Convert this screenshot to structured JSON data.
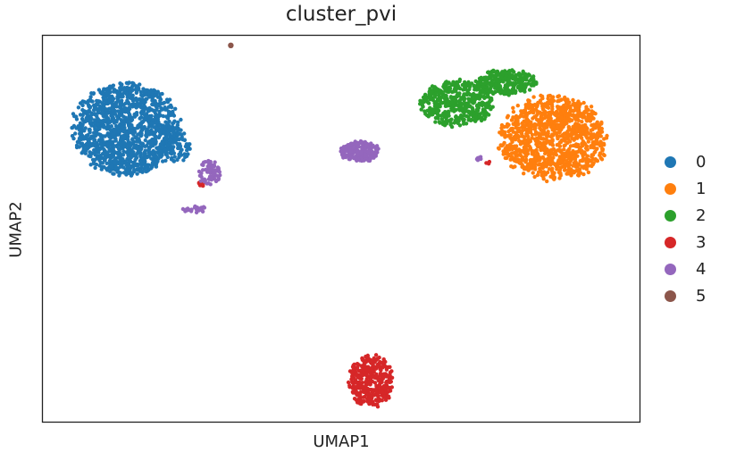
{
  "chart_data": {
    "type": "scatter",
    "title": "cluster_pvi",
    "xlabel": "UMAP1",
    "ylabel": "UMAP2",
    "grid": false,
    "legend_position": "right",
    "xlim": [
      0,
      100
    ],
    "ylim": [
      0,
      100
    ],
    "series": [
      {
        "name": "0",
        "color": "#1f77b4",
        "clusters": [
          {
            "cx": 14,
            "cy": 76,
            "rx": 9.5,
            "ry": 12.5,
            "n": 1300
          },
          {
            "cx": 22.5,
            "cy": 71.5,
            "rx": 2.2,
            "ry": 5,
            "n": 80
          }
        ]
      },
      {
        "name": "1",
        "color": "#ff7f0e",
        "clusters": [
          {
            "cx": 85.5,
            "cy": 73.5,
            "rx": 9.5,
            "ry": 11.5,
            "n": 1100
          }
        ]
      },
      {
        "name": "2",
        "color": "#2ca02c",
        "clusters": [
          {
            "cx": 69.5,
            "cy": 82.5,
            "rx": 6.5,
            "ry": 6.5,
            "n": 450
          },
          {
            "cx": 77.5,
            "cy": 88,
            "rx": 5.5,
            "ry": 3.5,
            "n": 280
          }
        ]
      },
      {
        "name": "3",
        "color": "#d62728",
        "clusters": [
          {
            "cx": 55,
            "cy": 10.5,
            "rx": 4,
            "ry": 7,
            "n": 360
          },
          {
            "cx": 26.5,
            "cy": 61.5,
            "rx": 0.6,
            "ry": 0.8,
            "n": 8
          },
          {
            "cx": 74.5,
            "cy": 67,
            "rx": 0.5,
            "ry": 0.5,
            "n": 4
          }
        ]
      },
      {
        "name": "4",
        "color": "#9467bd",
        "clusters": [
          {
            "cx": 53,
            "cy": 70,
            "rx": 3.6,
            "ry": 3,
            "n": 220
          },
          {
            "cx": 28,
            "cy": 64.5,
            "rx": 2,
            "ry": 3.5,
            "n": 70
          },
          {
            "cx": 25.5,
            "cy": 55,
            "rx": 2.2,
            "ry": 1,
            "n": 25
          },
          {
            "cx": 73.5,
            "cy": 68,
            "rx": 0.8,
            "ry": 0.6,
            "n": 8
          }
        ]
      },
      {
        "name": "5",
        "color": "#8c564b",
        "clusters": [
          {
            "cx": 31.5,
            "cy": 97.5,
            "rx": 0.3,
            "ry": 0.3,
            "n": 1
          }
        ]
      }
    ],
    "legend": [
      {
        "label": "0",
        "color": "#1f77b4"
      },
      {
        "label": "1",
        "color": "#ff7f0e"
      },
      {
        "label": "2",
        "color": "#2ca02c"
      },
      {
        "label": "3",
        "color": "#d62728"
      },
      {
        "label": "4",
        "color": "#9467bd"
      },
      {
        "label": "5",
        "color": "#8c564b"
      }
    ]
  }
}
